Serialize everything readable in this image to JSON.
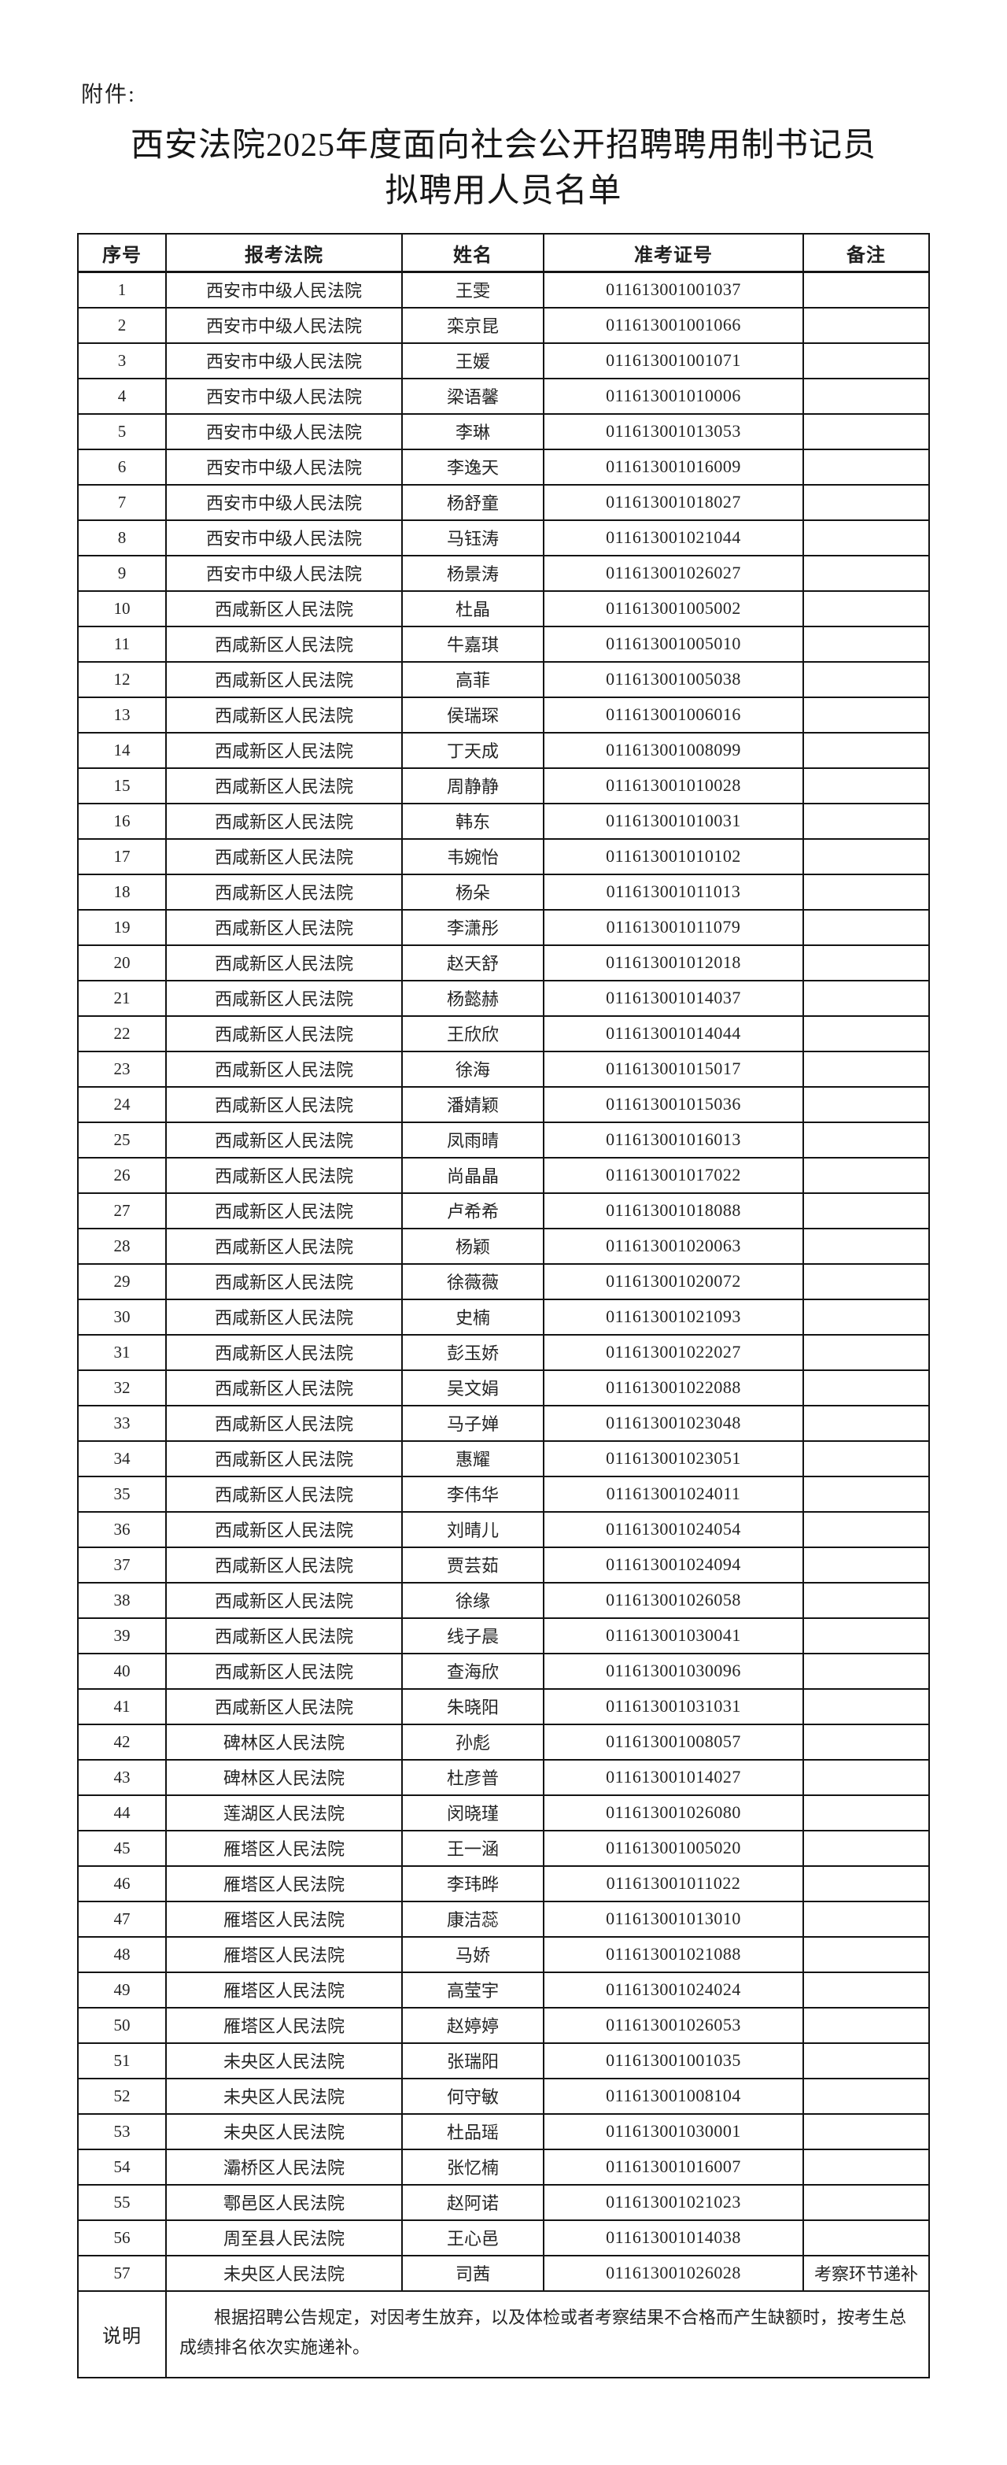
{
  "attachment_label": "附件:",
  "title": {
    "line1": "西安法院2025年度面向社会公开招聘聘用制书记员",
    "line2": "拟聘用人员名单"
  },
  "colors": {
    "background": "#ffffff",
    "text": "#242424",
    "border": "#141414"
  },
  "table": {
    "columns": [
      "序号",
      "报考法院",
      "姓名",
      "准考证号",
      "备注"
    ],
    "rows": [
      {
        "no": "1",
        "court": "西安市中级人民法院",
        "name": "王雯",
        "admission_no": "011613001001037",
        "remark": ""
      },
      {
        "no": "2",
        "court": "西安市中级人民法院",
        "name": "栾京昆",
        "admission_no": "011613001001066",
        "remark": ""
      },
      {
        "no": "3",
        "court": "西安市中级人民法院",
        "name": "王媛",
        "admission_no": "011613001001071",
        "remark": ""
      },
      {
        "no": "4",
        "court": "西安市中级人民法院",
        "name": "梁语馨",
        "admission_no": "011613001010006",
        "remark": ""
      },
      {
        "no": "5",
        "court": "西安市中级人民法院",
        "name": "李琳",
        "admission_no": "011613001013053",
        "remark": ""
      },
      {
        "no": "6",
        "court": "西安市中级人民法院",
        "name": "李逸天",
        "admission_no": "011613001016009",
        "remark": ""
      },
      {
        "no": "7",
        "court": "西安市中级人民法院",
        "name": "杨舒童",
        "admission_no": "011613001018027",
        "remark": ""
      },
      {
        "no": "8",
        "court": "西安市中级人民法院",
        "name": "马钰涛",
        "admission_no": "011613001021044",
        "remark": ""
      },
      {
        "no": "9",
        "court": "西安市中级人民法院",
        "name": "杨景涛",
        "admission_no": "011613001026027",
        "remark": ""
      },
      {
        "no": "10",
        "court": "西咸新区人民法院",
        "name": "杜晶",
        "admission_no": "011613001005002",
        "remark": ""
      },
      {
        "no": "11",
        "court": "西咸新区人民法院",
        "name": "牛嘉琪",
        "admission_no": "011613001005010",
        "remark": ""
      },
      {
        "no": "12",
        "court": "西咸新区人民法院",
        "name": "高菲",
        "admission_no": "011613001005038",
        "remark": ""
      },
      {
        "no": "13",
        "court": "西咸新区人民法院",
        "name": "侯瑞琛",
        "admission_no": "011613001006016",
        "remark": ""
      },
      {
        "no": "14",
        "court": "西咸新区人民法院",
        "name": "丁天成",
        "admission_no": "011613001008099",
        "remark": ""
      },
      {
        "no": "15",
        "court": "西咸新区人民法院",
        "name": "周静静",
        "admission_no": "011613001010028",
        "remark": ""
      },
      {
        "no": "16",
        "court": "西咸新区人民法院",
        "name": "韩东",
        "admission_no": "011613001010031",
        "remark": ""
      },
      {
        "no": "17",
        "court": "西咸新区人民法院",
        "name": "韦婉怡",
        "admission_no": "011613001010102",
        "remark": ""
      },
      {
        "no": "18",
        "court": "西咸新区人民法院",
        "name": "杨朵",
        "admission_no": "011613001011013",
        "remark": ""
      },
      {
        "no": "19",
        "court": "西咸新区人民法院",
        "name": "李潇彤",
        "admission_no": "011613001011079",
        "remark": ""
      },
      {
        "no": "20",
        "court": "西咸新区人民法院",
        "name": "赵天舒",
        "admission_no": "011613001012018",
        "remark": ""
      },
      {
        "no": "21",
        "court": "西咸新区人民法院",
        "name": "杨懿赫",
        "admission_no": "011613001014037",
        "remark": ""
      },
      {
        "no": "22",
        "court": "西咸新区人民法院",
        "name": "王欣欣",
        "admission_no": "011613001014044",
        "remark": ""
      },
      {
        "no": "23",
        "court": "西咸新区人民法院",
        "name": "徐海",
        "admission_no": "011613001015017",
        "remark": ""
      },
      {
        "no": "24",
        "court": "西咸新区人民法院",
        "name": "潘婧颖",
        "admission_no": "011613001015036",
        "remark": ""
      },
      {
        "no": "25",
        "court": "西咸新区人民法院",
        "name": "凤雨晴",
        "admission_no": "011613001016013",
        "remark": ""
      },
      {
        "no": "26",
        "court": "西咸新区人民法院",
        "name": "尚晶晶",
        "admission_no": "011613001017022",
        "remark": ""
      },
      {
        "no": "27",
        "court": "西咸新区人民法院",
        "name": "卢希希",
        "admission_no": "011613001018088",
        "remark": ""
      },
      {
        "no": "28",
        "court": "西咸新区人民法院",
        "name": "杨颖",
        "admission_no": "011613001020063",
        "remark": ""
      },
      {
        "no": "29",
        "court": "西咸新区人民法院",
        "name": "徐薇薇",
        "admission_no": "011613001020072",
        "remark": ""
      },
      {
        "no": "30",
        "court": "西咸新区人民法院",
        "name": "史楠",
        "admission_no": "011613001021093",
        "remark": ""
      },
      {
        "no": "31",
        "court": "西咸新区人民法院",
        "name": "彭玉娇",
        "admission_no": "011613001022027",
        "remark": ""
      },
      {
        "no": "32",
        "court": "西咸新区人民法院",
        "name": "吴文娟",
        "admission_no": "011613001022088",
        "remark": ""
      },
      {
        "no": "33",
        "court": "西咸新区人民法院",
        "name": "马子婵",
        "admission_no": "011613001023048",
        "remark": ""
      },
      {
        "no": "34",
        "court": "西咸新区人民法院",
        "name": "惠耀",
        "admission_no": "011613001023051",
        "remark": ""
      },
      {
        "no": "35",
        "court": "西咸新区人民法院",
        "name": "李伟华",
        "admission_no": "011613001024011",
        "remark": ""
      },
      {
        "no": "36",
        "court": "西咸新区人民法院",
        "name": "刘晴儿",
        "admission_no": "011613001024054",
        "remark": ""
      },
      {
        "no": "37",
        "court": "西咸新区人民法院",
        "name": "贾芸茹",
        "admission_no": "011613001024094",
        "remark": ""
      },
      {
        "no": "38",
        "court": "西咸新区人民法院",
        "name": "徐缘",
        "admission_no": "011613001026058",
        "remark": ""
      },
      {
        "no": "39",
        "court": "西咸新区人民法院",
        "name": "线子晨",
        "admission_no": "011613001030041",
        "remark": ""
      },
      {
        "no": "40",
        "court": "西咸新区人民法院",
        "name": "查海欣",
        "admission_no": "011613001030096",
        "remark": ""
      },
      {
        "no": "41",
        "court": "西咸新区人民法院",
        "name": "朱晓阳",
        "admission_no": "011613001031031",
        "remark": ""
      },
      {
        "no": "42",
        "court": "碑林区人民法院",
        "name": "孙彪",
        "admission_no": "011613001008057",
        "remark": ""
      },
      {
        "no": "43",
        "court": "碑林区人民法院",
        "name": "杜彦普",
        "admission_no": "011613001014027",
        "remark": ""
      },
      {
        "no": "44",
        "court": "莲湖区人民法院",
        "name": "闵晓瑾",
        "admission_no": "011613001026080",
        "remark": ""
      },
      {
        "no": "45",
        "court": "雁塔区人民法院",
        "name": "王一涵",
        "admission_no": "011613001005020",
        "remark": ""
      },
      {
        "no": "46",
        "court": "雁塔区人民法院",
        "name": "李玮晔",
        "admission_no": "011613001011022",
        "remark": ""
      },
      {
        "no": "47",
        "court": "雁塔区人民法院",
        "name": "康洁蕊",
        "admission_no": "011613001013010",
        "remark": ""
      },
      {
        "no": "48",
        "court": "雁塔区人民法院",
        "name": "马娇",
        "admission_no": "011613001021088",
        "remark": ""
      },
      {
        "no": "49",
        "court": "雁塔区人民法院",
        "name": "高莹宇",
        "admission_no": "011613001024024",
        "remark": ""
      },
      {
        "no": "50",
        "court": "雁塔区人民法院",
        "name": "赵婷婷",
        "admission_no": "011613001026053",
        "remark": ""
      },
      {
        "no": "51",
        "court": "未央区人民法院",
        "name": "张瑞阳",
        "admission_no": "011613001001035",
        "remark": ""
      },
      {
        "no": "52",
        "court": "未央区人民法院",
        "name": "何守敏",
        "admission_no": "011613001008104",
        "remark": ""
      },
      {
        "no": "53",
        "court": "未央区人民法院",
        "name": "杜品瑶",
        "admission_no": "011613001030001",
        "remark": ""
      },
      {
        "no": "54",
        "court": "灞桥区人民法院",
        "name": "张忆楠",
        "admission_no": "011613001016007",
        "remark": ""
      },
      {
        "no": "55",
        "court": "鄠邑区人民法院",
        "name": "赵阿诺",
        "admission_no": "011613001021023",
        "remark": ""
      },
      {
        "no": "56",
        "court": "周至县人民法院",
        "name": "王心邑",
        "admission_no": "011613001014038",
        "remark": ""
      },
      {
        "no": "57",
        "court": "未央区人民法院",
        "name": "司茜",
        "admission_no": "011613001026028",
        "remark": "考察环节递补"
      }
    ]
  },
  "note": {
    "label": "说明",
    "text": "根据招聘公告规定，对因考生放弃，以及体检或者考察结果不合格而产生缺额时，按考生总成绩排名依次实施递补。"
  }
}
